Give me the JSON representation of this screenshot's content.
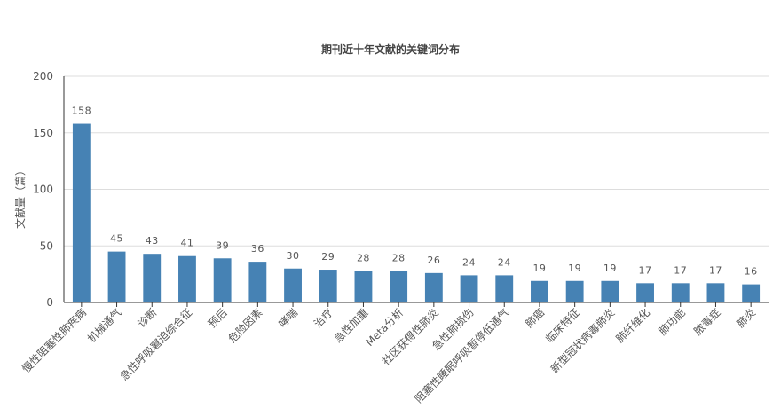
{
  "chart_data": {
    "type": "bar",
    "title": "期刊近十年文献的关键词分布",
    "ylabel": "文献量（篇）",
    "xlabel": "",
    "ylim": [
      0,
      200
    ],
    "yticks": [
      0,
      50,
      100,
      150,
      200
    ],
    "grid": true,
    "bar_color": "#4682b4",
    "categories": [
      "慢性阻塞性肺疾病",
      "机械通气",
      "诊断",
      "急性呼吸窘迫综合征",
      "预后",
      "危险因素",
      "哮喘",
      "治疗",
      "急性加重",
      "Meta分析",
      "社区获得性肺炎",
      "急性肺损伤",
      "阻塞性睡眠呼吸暂停低通气",
      "肺癌",
      "临床特征",
      "新型冠状病毒肺炎",
      "肺纤维化",
      "肺功能",
      "脓毒症",
      "肺炎"
    ],
    "values": [
      158,
      45,
      43,
      41,
      39,
      36,
      30,
      29,
      28,
      28,
      26,
      24,
      24,
      19,
      19,
      19,
      17,
      17,
      17,
      16
    ]
  }
}
